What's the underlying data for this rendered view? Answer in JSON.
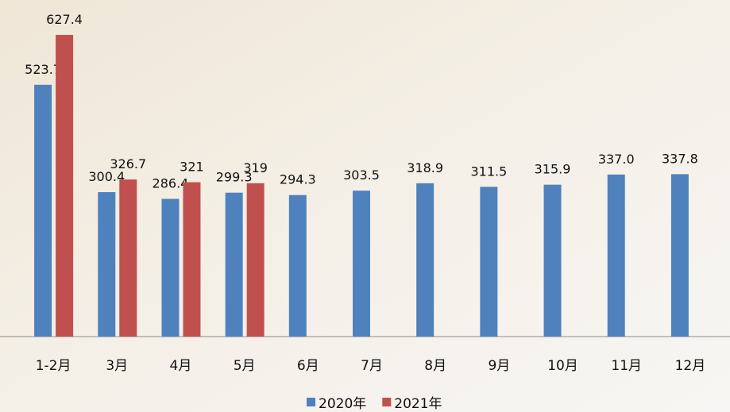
{
  "chart_data": {
    "type": "bar",
    "categories": [
      "1-2月",
      "3月",
      "4月",
      "5月",
      "6月",
      "7月",
      "8月",
      "9月",
      "10月",
      "11月",
      "12月"
    ],
    "series": [
      {
        "name": "2020年",
        "color": "#4f81bd",
        "values": [
          523.7,
          300.4,
          286.4,
          299.3,
          294.3,
          303.5,
          318.9,
          311.5,
          315.9,
          337.0,
          337.8
        ],
        "value_labels": [
          "523.7",
          "300.4",
          "286.4",
          "299.3",
          "294.3",
          "303.5",
          "318.9",
          "311.5",
          "315.9",
          "337.0",
          "337.8"
        ]
      },
      {
        "name": "2021年",
        "color": "#c0504d",
        "values": [
          627.4,
          326.7,
          321,
          319,
          null,
          null,
          null,
          null,
          null,
          null,
          null
        ]
      }
    ],
    "ylim": [
      0,
      700
    ]
  }
}
